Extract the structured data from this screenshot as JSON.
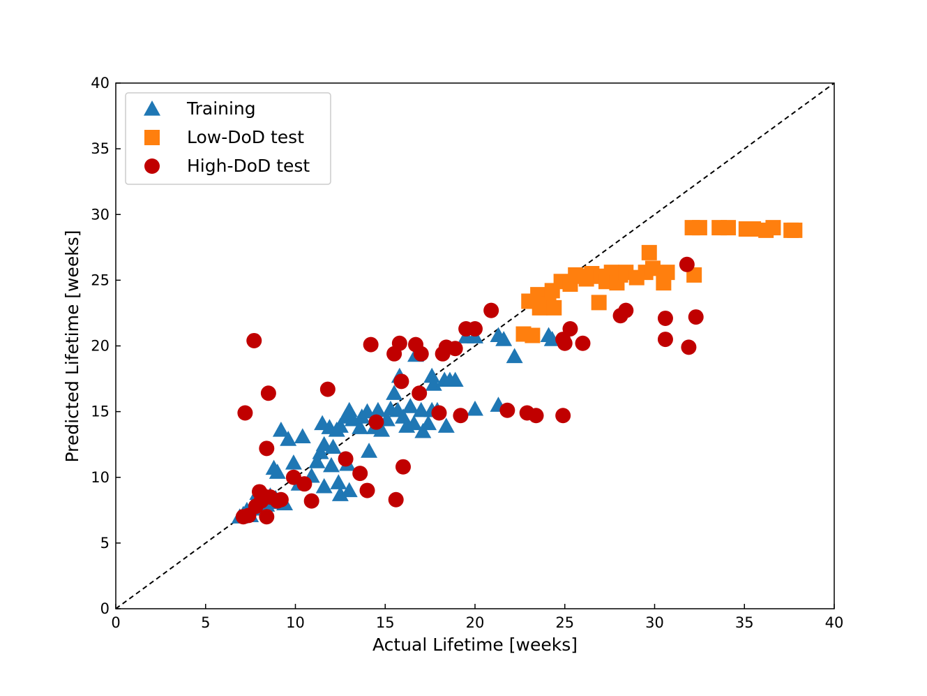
{
  "chart_data": {
    "type": "scatter",
    "title": "",
    "xlabel": "Actual Lifetime [weeks]",
    "ylabel": "Predicted Lifetime [weeks]",
    "xlim": [
      0,
      40
    ],
    "ylim": [
      0,
      40
    ],
    "xticks": [
      0,
      5,
      10,
      15,
      20,
      25,
      30,
      35,
      40
    ],
    "yticks": [
      0,
      5,
      10,
      15,
      20,
      25,
      30,
      35,
      40
    ],
    "grid": false,
    "legend_position": "top-left",
    "reference_line": {
      "type": "identity",
      "style": "dashed",
      "color": "#000000"
    },
    "series": [
      {
        "name": "Training",
        "marker": "triangle",
        "color": "#1f77b4",
        "points": [
          [
            6.9,
            7.0
          ],
          [
            7.1,
            7.2
          ],
          [
            7.3,
            7.5
          ],
          [
            7.5,
            7.1
          ],
          [
            7.6,
            7.8
          ],
          [
            7.8,
            8.2
          ],
          [
            7.9,
            8.8
          ],
          [
            8.0,
            7.6
          ],
          [
            8.2,
            8.3
          ],
          [
            8.4,
            7.9
          ],
          [
            8.6,
            8.6
          ],
          [
            8.9,
            8.4
          ],
          [
            9.1,
            8.1
          ],
          [
            9.4,
            8.0
          ],
          [
            8.8,
            10.7
          ],
          [
            9.0,
            10.4
          ],
          [
            9.2,
            13.6
          ],
          [
            9.6,
            12.9
          ],
          [
            9.9,
            11.1
          ],
          [
            10.4,
            13.1
          ],
          [
            10.2,
            9.5
          ],
          [
            10.9,
            10.1
          ],
          [
            11.2,
            11.2
          ],
          [
            11.4,
            11.9
          ],
          [
            11.6,
            12.5
          ],
          [
            11.5,
            14.1
          ],
          [
            11.9,
            13.8
          ],
          [
            12.1,
            12.3
          ],
          [
            12.3,
            13.6
          ],
          [
            12.5,
            13.9
          ],
          [
            11.6,
            9.3
          ],
          [
            12.0,
            10.9
          ],
          [
            12.4,
            9.6
          ],
          [
            12.5,
            8.7
          ],
          [
            13.0,
            9.0
          ],
          [
            12.9,
            11.0
          ],
          [
            12.8,
            14.6
          ],
          [
            13.0,
            15.1
          ],
          [
            13.2,
            14.4
          ],
          [
            13.6,
            13.8
          ],
          [
            13.7,
            14.6
          ],
          [
            14.0,
            15.0
          ],
          [
            14.1,
            12.0
          ],
          [
            14.4,
            13.8
          ],
          [
            14.6,
            15.1
          ],
          [
            14.8,
            13.6
          ],
          [
            15.1,
            14.4
          ],
          [
            15.3,
            15.2
          ],
          [
            15.5,
            16.4
          ],
          [
            15.8,
            17.7
          ],
          [
            15.7,
            15.1
          ],
          [
            16.0,
            14.6
          ],
          [
            16.2,
            13.9
          ],
          [
            16.4,
            15.4
          ],
          [
            16.6,
            14.1
          ],
          [
            16.7,
            19.3
          ],
          [
            17.0,
            15.1
          ],
          [
            17.1,
            13.5
          ],
          [
            17.4,
            14.1
          ],
          [
            17.6,
            15.1
          ],
          [
            17.7,
            17.1
          ],
          [
            17.6,
            17.7
          ],
          [
            17.9,
            15.1
          ],
          [
            18.3,
            17.4
          ],
          [
            18.4,
            13.9
          ],
          [
            18.6,
            17.4
          ],
          [
            18.9,
            17.4
          ],
          [
            19.5,
            20.7
          ],
          [
            20.0,
            15.2
          ],
          [
            20.0,
            20.7
          ],
          [
            21.3,
            15.5
          ],
          [
            21.3,
            20.8
          ],
          [
            21.6,
            20.5
          ],
          [
            22.2,
            19.2
          ],
          [
            24.1,
            20.8
          ],
          [
            24.3,
            20.5
          ]
        ]
      },
      {
        "name": "Low-DoD test",
        "marker": "square",
        "color": "#ff7f0e",
        "points": [
          [
            22.7,
            20.9
          ],
          [
            23.2,
            20.8
          ],
          [
            23.0,
            23.4
          ],
          [
            23.5,
            23.9
          ],
          [
            23.6,
            22.9
          ],
          [
            24.1,
            23.2
          ],
          [
            24.4,
            22.9
          ],
          [
            24.3,
            24.2
          ],
          [
            24.8,
            24.9
          ],
          [
            25.3,
            24.7
          ],
          [
            25.6,
            25.4
          ],
          [
            25.9,
            25.3
          ],
          [
            26.2,
            25.1
          ],
          [
            26.5,
            25.5
          ],
          [
            27.0,
            25.3
          ],
          [
            26.9,
            23.3
          ],
          [
            27.3,
            24.9
          ],
          [
            27.6,
            25.6
          ],
          [
            27.9,
            24.8
          ],
          [
            28.1,
            25.4
          ],
          [
            28.4,
            25.6
          ],
          [
            29.0,
            25.2
          ],
          [
            29.5,
            25.6
          ],
          [
            29.7,
            27.1
          ],
          [
            29.9,
            25.9
          ],
          [
            30.5,
            24.8
          ],
          [
            30.7,
            25.6
          ],
          [
            32.2,
            25.4
          ],
          [
            32.1,
            29.0
          ],
          [
            32.5,
            29.0
          ],
          [
            33.6,
            29.0
          ],
          [
            34.1,
            29.0
          ],
          [
            35.1,
            28.9
          ],
          [
            35.5,
            28.9
          ],
          [
            36.2,
            28.8
          ],
          [
            36.6,
            29.0
          ],
          [
            37.6,
            28.8
          ],
          [
            37.8,
            28.8
          ]
        ]
      },
      {
        "name": "High-DoD test",
        "marker": "circle",
        "color": "#c00000",
        "points": [
          [
            7.1,
            7.0
          ],
          [
            7.4,
            7.1
          ],
          [
            7.8,
            7.8
          ],
          [
            8.0,
            8.9
          ],
          [
            8.1,
            8.2
          ],
          [
            8.2,
            8.6
          ],
          [
            8.4,
            7.0
          ],
          [
            8.6,
            8.5
          ],
          [
            9.0,
            8.2
          ],
          [
            9.2,
            8.3
          ],
          [
            9.9,
            10.0
          ],
          [
            10.5,
            9.5
          ],
          [
            10.9,
            8.2
          ],
          [
            7.2,
            14.9
          ],
          [
            7.7,
            20.4
          ],
          [
            8.4,
            12.2
          ],
          [
            8.5,
            16.4
          ],
          [
            11.8,
            16.7
          ],
          [
            12.8,
            11.4
          ],
          [
            13.6,
            10.3
          ],
          [
            14.0,
            9.0
          ],
          [
            14.2,
            20.1
          ],
          [
            14.5,
            14.2
          ],
          [
            15.5,
            19.4
          ],
          [
            15.6,
            8.3
          ],
          [
            15.8,
            20.2
          ],
          [
            15.9,
            17.3
          ],
          [
            16.0,
            10.8
          ],
          [
            16.7,
            20.1
          ],
          [
            16.9,
            16.4
          ],
          [
            17.0,
            19.4
          ],
          [
            18.0,
            14.9
          ],
          [
            18.2,
            19.4
          ],
          [
            18.4,
            19.9
          ],
          [
            18.9,
            19.8
          ],
          [
            19.2,
            14.7
          ],
          [
            19.5,
            21.3
          ],
          [
            20.0,
            21.3
          ],
          [
            20.9,
            22.7
          ],
          [
            21.8,
            15.1
          ],
          [
            22.9,
            14.9
          ],
          [
            23.4,
            14.7
          ],
          [
            24.9,
            20.5
          ],
          [
            24.9,
            14.7
          ],
          [
            25.0,
            20.2
          ],
          [
            25.3,
            21.3
          ],
          [
            26.0,
            20.2
          ],
          [
            28.1,
            22.3
          ],
          [
            28.4,
            22.7
          ],
          [
            30.6,
            20.5
          ],
          [
            30.6,
            22.1
          ],
          [
            31.8,
            26.2
          ],
          [
            31.9,
            19.9
          ],
          [
            32.3,
            22.2
          ]
        ]
      }
    ]
  }
}
